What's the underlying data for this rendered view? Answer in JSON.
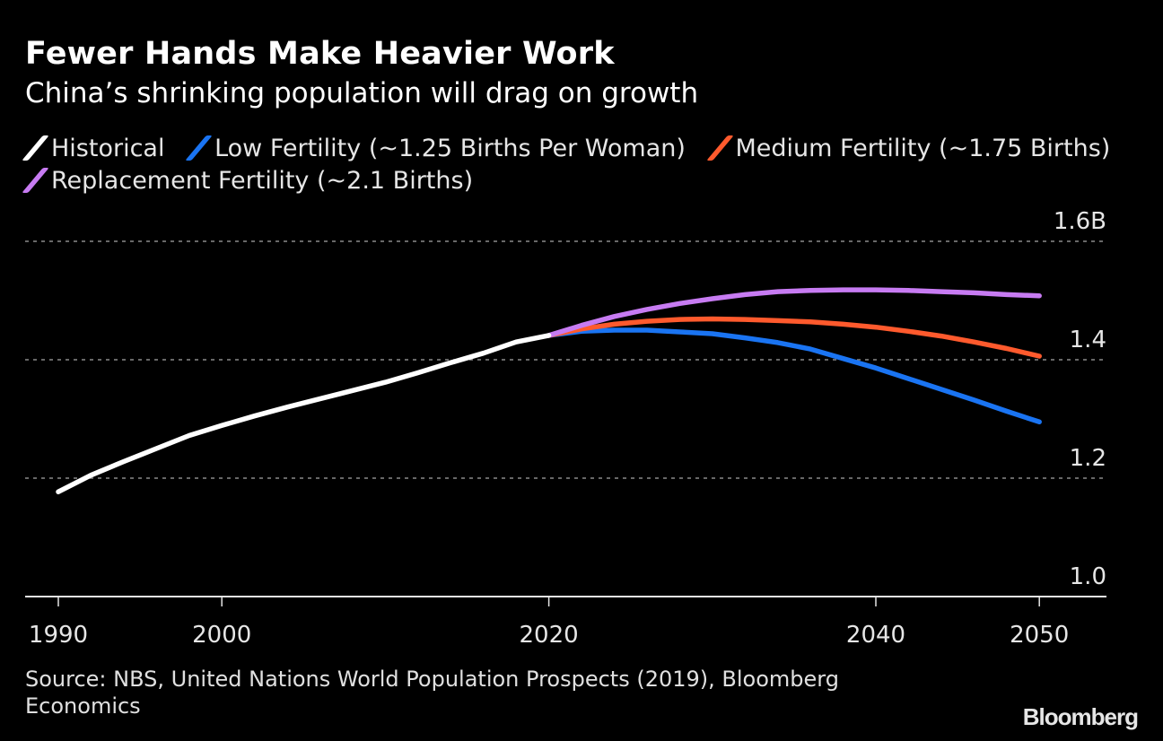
{
  "header": {
    "title": "Fewer Hands Make Heavier Work",
    "subtitle": "China’s shrinking population will drag on growth"
  },
  "legend": [
    {
      "label": "Historical",
      "color": "#ffffff"
    },
    {
      "label": "Low Fertility (~1.25 Births Per Woman)",
      "color": "#1a74f2"
    },
    {
      "label": "Medium Fertility (~1.75 Births)",
      "color": "#ff5a2d"
    },
    {
      "label": "Replacement Fertility (~2.1 Births)",
      "color": "#c77bf2"
    }
  ],
  "footer": {
    "source": "Source: NBS, United Nations World Population Prospects (2019), Bloomberg Economics",
    "logo": "Bloomberg"
  },
  "chart_data": {
    "type": "line",
    "title": "Fewer Hands Make Heavier Work",
    "subtitle": "China’s shrinking population will drag on growth",
    "xlabel": "",
    "ylabel": "",
    "xlim": [
      1988,
      2054
    ],
    "ylim": [
      1.0,
      1.6
    ],
    "x_ticks": [
      1990,
      2000,
      2020,
      2040,
      2050
    ],
    "x_tick_labels": [
      "1990",
      "2000",
      "2020",
      "2040",
      "2050"
    ],
    "y_ticks": [
      1.0,
      1.2,
      1.4,
      1.6
    ],
    "y_tick_labels": [
      "1.0",
      "1.2",
      "1.4",
      "1.6B"
    ],
    "grid": "horizontal-dotted",
    "legend_position": "top",
    "series": [
      {
        "name": "Historical",
        "color": "#ffffff",
        "x": [
          1990,
          1992,
          1994,
          1996,
          1998,
          2000,
          2002,
          2004,
          2006,
          2008,
          2010,
          2012,
          2014,
          2016,
          2018,
          2020
        ],
        "values": [
          1.177,
          1.205,
          1.228,
          1.25,
          1.272,
          1.289,
          1.305,
          1.32,
          1.334,
          1.348,
          1.362,
          1.378,
          1.395,
          1.411,
          1.43,
          1.441
        ]
      },
      {
        "name": "Low Fertility (~1.25 Births Per Woman)",
        "color": "#1a74f2",
        "x": [
          2020,
          2022,
          2024,
          2026,
          2028,
          2030,
          2032,
          2034,
          2036,
          2038,
          2040,
          2042,
          2044,
          2046,
          2048,
          2050
        ],
        "values": [
          1.441,
          1.448,
          1.45,
          1.45,
          1.447,
          1.444,
          1.437,
          1.429,
          1.418,
          1.402,
          1.386,
          1.368,
          1.35,
          1.332,
          1.313,
          1.295
        ]
      },
      {
        "name": "Medium Fertility (~1.75 Births)",
        "color": "#ff5a2d",
        "x": [
          2020,
          2022,
          2024,
          2026,
          2028,
          2030,
          2032,
          2034,
          2036,
          2038,
          2040,
          2042,
          2044,
          2046,
          2048,
          2050
        ],
        "values": [
          1.441,
          1.452,
          1.46,
          1.465,
          1.468,
          1.469,
          1.468,
          1.466,
          1.464,
          1.46,
          1.455,
          1.448,
          1.44,
          1.43,
          1.419,
          1.406
        ]
      },
      {
        "name": "Replacement Fertility (~2.1 Births)",
        "color": "#c77bf2",
        "x": [
          2020,
          2022,
          2024,
          2026,
          2028,
          2030,
          2032,
          2034,
          2036,
          2038,
          2040,
          2042,
          2044,
          2046,
          2048,
          2050
        ],
        "values": [
          1.441,
          1.458,
          1.473,
          1.485,
          1.495,
          1.503,
          1.51,
          1.515,
          1.517,
          1.518,
          1.518,
          1.517,
          1.515,
          1.513,
          1.51,
          1.508
        ]
      }
    ]
  }
}
